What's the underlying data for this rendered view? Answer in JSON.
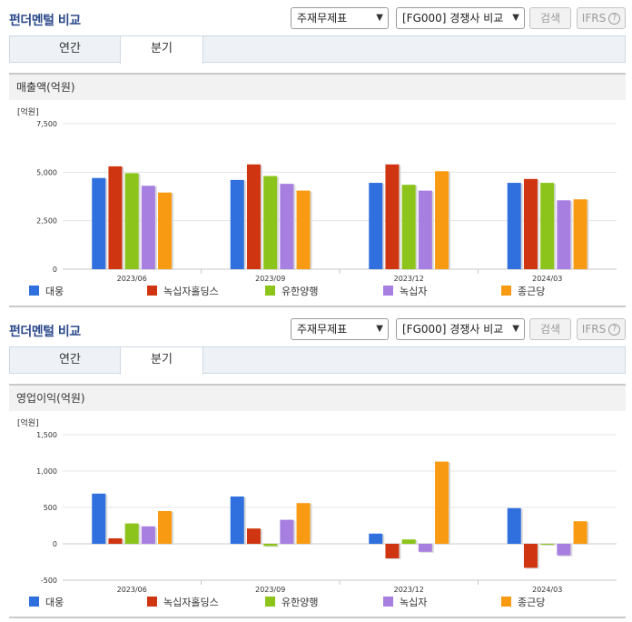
{
  "sections": [
    {
      "title": "펀더멘털 비교",
      "select1": "주재무제표",
      "select2": "[FG000] 경쟁사 비교",
      "search_label": "검색",
      "ifrs_label": "IFRS",
      "ifrs_help": "?",
      "tabs": [
        "연간",
        "분기"
      ],
      "metric_title": "매출액(억원)"
    },
    {
      "title": "펀더멘털 비교",
      "select1": "주재무제표",
      "select2": "[FG000] 경쟁사 비교",
      "search_label": "검색",
      "ifrs_label": "IFRS",
      "ifrs_help": "?",
      "tabs": [
        "연간",
        "분기"
      ],
      "metric_title": "영업이익(억원)"
    }
  ],
  "chart_data": [
    {
      "type": "bar",
      "title": "매출액(억원)",
      "ylabel": "[억원]",
      "ylim": [
        0,
        7500
      ],
      "yticks": [
        "0",
        "2,500",
        "5,000",
        "7,500"
      ],
      "ytick_values": [
        0,
        2500,
        5000,
        7500
      ],
      "categories": [
        "2023/06",
        "2023/09",
        "2023/12",
        "2024/03"
      ],
      "grid": true,
      "legend": "bottom",
      "series": [
        {
          "name": "대웅",
          "color": "#2f6fde",
          "values": [
            4700,
            4600,
            4450,
            4450
          ]
        },
        {
          "name": "녹십자홀딩스",
          "color": "#cf3510",
          "values": [
            5300,
            5400,
            5400,
            4650
          ]
        },
        {
          "name": "유한양행",
          "color": "#8cc41c",
          "values": [
            4950,
            4800,
            4350,
            4450
          ]
        },
        {
          "name": "녹십자",
          "color": "#a77fe0",
          "values": [
            4300,
            4400,
            4050,
            3550
          ]
        },
        {
          "name": "종근당",
          "color": "#f89a12",
          "values": [
            3950,
            4050,
            5050,
            3600
          ]
        }
      ]
    },
    {
      "type": "bar",
      "title": "영업이익(억원)",
      "ylabel": "[억원]",
      "ylim": [
        -500,
        1500
      ],
      "yticks": [
        "-500",
        "0",
        "500",
        "1,000",
        "1,500"
      ],
      "ytick_values": [
        -500,
        0,
        500,
        1000,
        1500
      ],
      "categories": [
        "2023/06",
        "2023/09",
        "2023/12",
        "2024/03"
      ],
      "grid": true,
      "legend": "bottom",
      "series": [
        {
          "name": "대웅",
          "color": "#2f6fde",
          "values": [
            690,
            650,
            140,
            490
          ]
        },
        {
          "name": "녹십자홀딩스",
          "color": "#cf3510",
          "values": [
            75,
            210,
            -200,
            -330
          ]
        },
        {
          "name": "유한양행",
          "color": "#8cc41c",
          "values": [
            280,
            -30,
            60,
            0
          ]
        },
        {
          "name": "녹십자",
          "color": "#a77fe0",
          "values": [
            240,
            330,
            -110,
            -160
          ]
        },
        {
          "name": "종근당",
          "color": "#f89a12",
          "values": [
            450,
            560,
            1130,
            310
          ]
        }
      ]
    }
  ]
}
